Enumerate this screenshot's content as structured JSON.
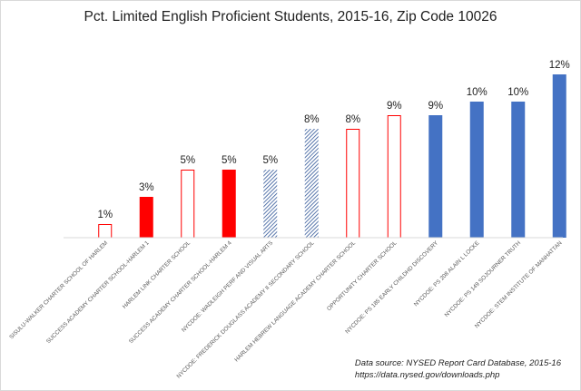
{
  "chart_data": {
    "type": "bar",
    "title": "Pct. Limited English Proficient Students, 2015-16, Zip Code 10026",
    "xlabel": "",
    "ylabel": "",
    "ylim": [
      0,
      12
    ],
    "grid": false,
    "legend": "none",
    "categories": [
      "SISULU-WALKER CHARTER SCHOOL OF HARLEM",
      "SUCCESS ACADEMY CHARTER SCHOOL-HARLEM 1",
      "HARLEM LINK CHARTER SCHOOL",
      "SUCCESS ACADEMY CHARTER SCHOOL-HARLEM 4",
      "NYCDOE: WADLEIGH PERF AND VISUAL ARTS",
      "NYCDOE: FREDERICK DOUGLASS ACADEMY II SECONDARY SCHOOL",
      "HARLEM HEBREW LANGUAGE ACADEMY CHARTER SCHOOL",
      "OPPORTUNITY CHARTER SCHOOL",
      "NYCDOE: PS 185 EARLY CHILDHD DISCOVERY",
      "NYCDOE: PS 208 ALAIN L LOCKE",
      "NYCDOE: PS 149 SOJOURNER TRUTH",
      "NYCDOE: STEM INSTITUTE OF MANHATTAN"
    ],
    "values": [
      1,
      3,
      5,
      5,
      5,
      8,
      8,
      9,
      9,
      10,
      10,
      12
    ],
    "data_labels": [
      "1%",
      "3%",
      "5%",
      "5%",
      "5%",
      "8%",
      "8%",
      "9%",
      "9%",
      "10%",
      "10%",
      "12%"
    ],
    "bar_styles": [
      "outline-red",
      "solid-red",
      "outline-red",
      "solid-red",
      "hatched-blue",
      "hatched-blue",
      "outline-red",
      "outline-red",
      "solid-blue",
      "solid-blue",
      "solid-blue",
      "solid-blue"
    ],
    "colors": {
      "red": "#ff0000",
      "blue": "#4472c4",
      "hatch_blue": "#2f5597",
      "axis": "#d9d9d9",
      "text": "#1f1f1f",
      "tick_text": "#595959"
    }
  },
  "source": {
    "line1": "Data source: NYSED Report Card Database, 2015-16",
    "line2": "https://data.nysed.gov/downloads.php"
  }
}
